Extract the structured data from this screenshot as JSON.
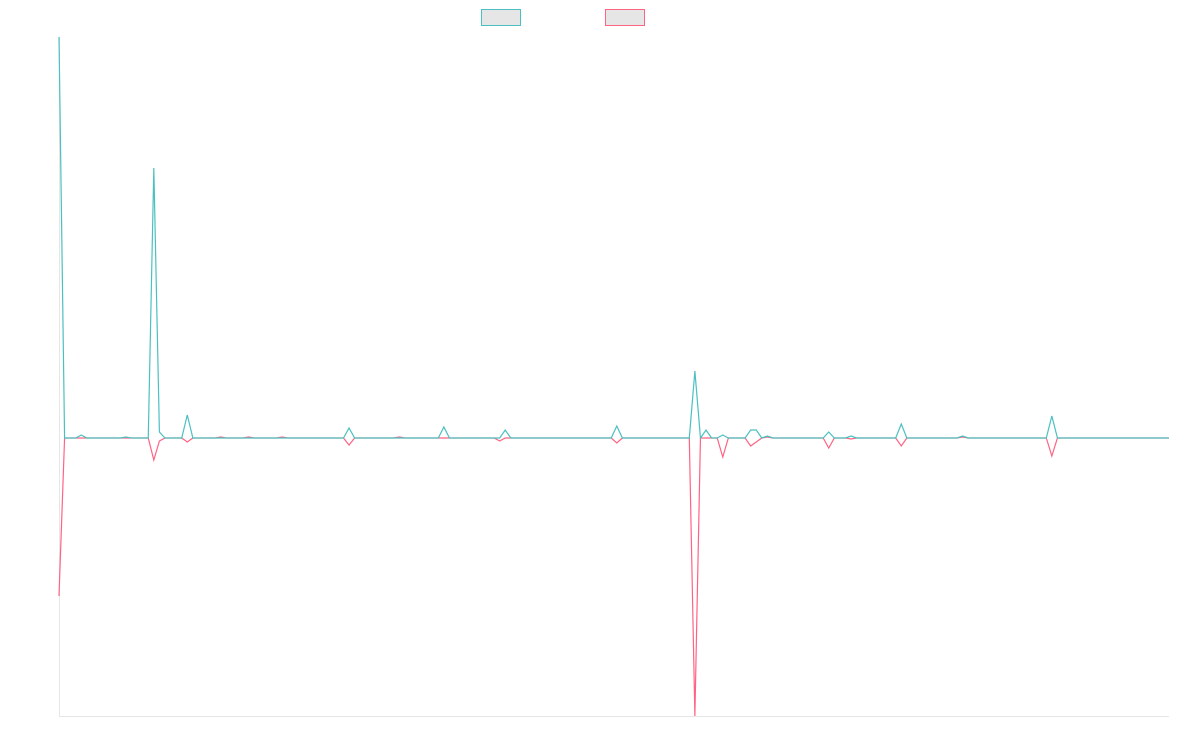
{
  "chart_data": {
    "type": "line",
    "ylim": [
      -278,
      401
    ],
    "series": [
      {
        "color": "#ff6384",
        "values": [
          -158,
          0,
          0,
          0,
          0,
          0,
          0,
          0,
          0,
          0,
          0,
          0,
          0,
          0,
          0,
          0,
          0,
          -22,
          -3,
          0,
          0,
          0,
          0,
          -4,
          0,
          0,
          0,
          0,
          0,
          1,
          0,
          0,
          0,
          0,
          1,
          0,
          0,
          0,
          0,
          0,
          1,
          0,
          0,
          0,
          0,
          0,
          0,
          0,
          0,
          0,
          0,
          0,
          -7,
          0,
          0,
          0,
          0,
          0,
          0,
          0,
          0,
          1,
          0,
          0,
          0,
          0,
          0,
          0,
          0,
          0,
          0,
          0,
          0,
          0,
          0,
          0,
          0,
          0,
          0,
          -3,
          0,
          0,
          0,
          0,
          0,
          0,
          0,
          0,
          0,
          0,
          0,
          0,
          0,
          0,
          0,
          0,
          0,
          0,
          0,
          0,
          -5,
          0,
          0,
          0,
          0,
          0,
          0,
          0,
          0,
          0,
          0,
          0,
          0,
          0,
          -278,
          0,
          0,
          0,
          0,
          -19,
          0,
          0,
          0,
          0,
          -8,
          -4,
          0,
          1,
          0,
          0,
          0,
          0,
          0,
          0,
          0,
          0,
          0,
          0,
          -10,
          0,
          0,
          0,
          -1,
          0,
          0,
          0,
          0,
          0,
          0,
          0,
          0,
          -8,
          0,
          0,
          0,
          0,
          0,
          0,
          0,
          0,
          0,
          0,
          1,
          0,
          0,
          0,
          0,
          0,
          0,
          0,
          0,
          0,
          0,
          0,
          0,
          0,
          0,
          0,
          -18,
          0,
          0,
          0,
          0,
          0,
          0,
          0,
          0,
          0,
          0,
          0,
          0,
          0,
          0,
          0,
          0,
          0,
          0,
          0,
          0,
          0
        ]
      },
      {
        "color": "#4bc0c0",
        "values": [
          401,
          0,
          0,
          0,
          3,
          0,
          0,
          0,
          0,
          0,
          0,
          0,
          1,
          0,
          0,
          0,
          0,
          270,
          6,
          0,
          0,
          0,
          0,
          23,
          0,
          0,
          0,
          0,
          0,
          0,
          0,
          0,
          0,
          0,
          0,
          0,
          0,
          0,
          0,
          0,
          0,
          0,
          0,
          0,
          0,
          0,
          0,
          0,
          0,
          0,
          0,
          0,
          10,
          0,
          0,
          0,
          0,
          0,
          0,
          0,
          0,
          0,
          0,
          0,
          0,
          0,
          0,
          0,
          0,
          11,
          0,
          0,
          0,
          0,
          0,
          0,
          0,
          0,
          0,
          0,
          8,
          0,
          0,
          0,
          0,
          0,
          0,
          0,
          0,
          0,
          0,
          0,
          0,
          0,
          0,
          0,
          0,
          0,
          0,
          0,
          12,
          0,
          0,
          0,
          0,
          0,
          0,
          0,
          0,
          0,
          0,
          0,
          0,
          0,
          67,
          0,
          8,
          0,
          0,
          3,
          0,
          0,
          0,
          0,
          8,
          8,
          0,
          2,
          0,
          0,
          0,
          0,
          0,
          0,
          0,
          0,
          0,
          0,
          6,
          0,
          0,
          0,
          2,
          0,
          0,
          0,
          0,
          0,
          0,
          0,
          0,
          14,
          0,
          0,
          0,
          0,
          0,
          0,
          0,
          0,
          0,
          0,
          2,
          0,
          0,
          0,
          0,
          0,
          0,
          0,
          0,
          0,
          0,
          0,
          0,
          0,
          0,
          0,
          22,
          0,
          0,
          0,
          0,
          0,
          0,
          0,
          0,
          0,
          0,
          0,
          0,
          0,
          0,
          0,
          0,
          0,
          0,
          0,
          0,
          0
        ]
      }
    ]
  }
}
